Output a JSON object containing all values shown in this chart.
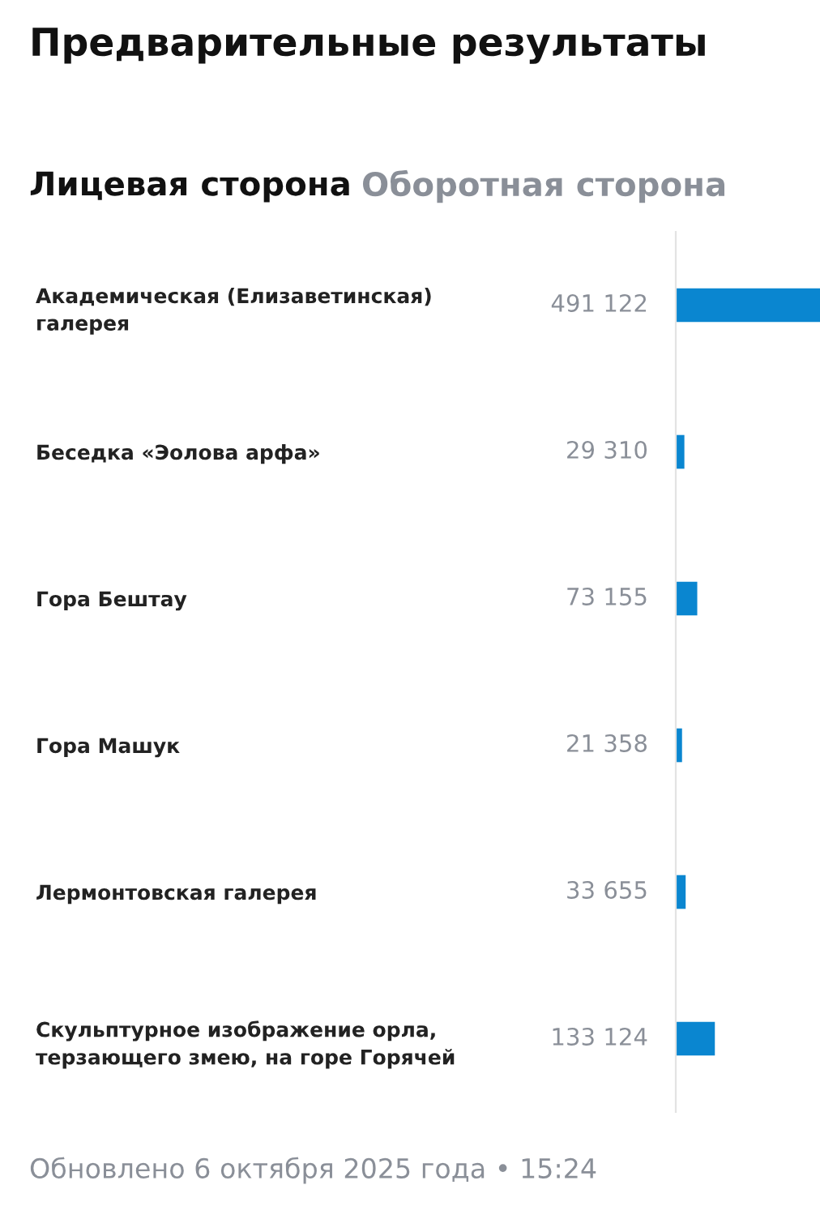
{
  "chart_data": {
    "type": "bar",
    "orientation": "horizontal",
    "title": "Предварительные результаты",
    "categories": [
      "Академическая (Елизаветинская) галерея",
      "Беседка «Эолова арфа»",
      "Гора Бештау",
      "Гора Машук",
      "Лермонтовская галерея",
      "Скульптурное изображение орла, терзающего змею, на горе Горячей"
    ],
    "values": [
      491122,
      29310,
      73155,
      21358,
      33655,
      133124
    ],
    "value_labels": [
      "491 122",
      "29 310",
      "73 155",
      "21 358",
      "33 655",
      "133 124"
    ],
    "color": "#0a86d0",
    "grid": false,
    "annotations": [
      "Лицевая сторона",
      "Оборотная сторона",
      "Обновлено 6 октября 2025 года • 15:24"
    ]
  }
}
